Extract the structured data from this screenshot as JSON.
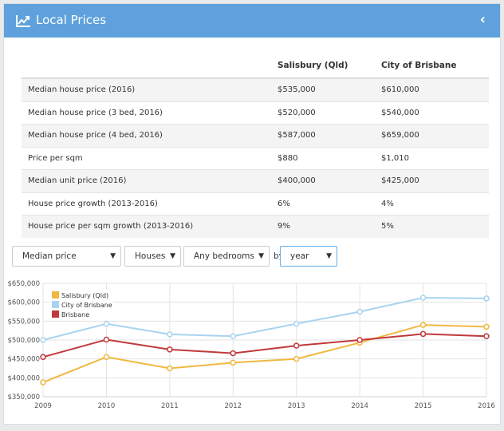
{
  "header": {
    "title": "Local Prices",
    "icon": "trend-chart-icon",
    "collapse_glyph": "‹"
  },
  "table": {
    "columns": [
      "",
      "Salisbury (Qld)",
      "City of Brisbane"
    ],
    "rows": [
      [
        "Median house price (2016)",
        "$535,000",
        "$610,000"
      ],
      [
        "Median house price (3 bed, 2016)",
        "$520,000",
        "$540,000"
      ],
      [
        "Median house price (4 bed, 2016)",
        "$587,000",
        "$659,000"
      ],
      [
        "Price per sqm",
        "$880",
        "$1,010"
      ],
      [
        "Median unit price (2016)",
        "$400,000",
        "$425,000"
      ],
      [
        "House price growth (2013-2016)",
        "6%",
        "4%"
      ],
      [
        "House price per sqm growth (2013-2016)",
        "9%",
        "5%"
      ]
    ]
  },
  "controls": {
    "metric": "Median price",
    "property_type": "Houses",
    "bedrooms": "Any bedrooms",
    "by_label": "by",
    "period": "year"
  },
  "chart_data": {
    "type": "line",
    "x": [
      "2009",
      "2010",
      "2011",
      "2012",
      "2013",
      "2014",
      "2015",
      "2016"
    ],
    "ylim": [
      350000,
      650000
    ],
    "yticks": [
      "$350,000",
      "$400,000",
      "$450,000",
      "$500,000",
      "$550,000",
      "$600,000",
      "$650,000"
    ],
    "ytick_values": [
      350000,
      400000,
      450000,
      500000,
      550000,
      600000,
      650000
    ],
    "grid": true,
    "legend_position": "top-left",
    "series": [
      {
        "name": "Salisbury (Qld)",
        "color": "#f0b840",
        "values": [
          388000,
          455000,
          425000,
          440000,
          450000,
          493000,
          540000,
          535000
        ]
      },
      {
        "name": "City of Brisbane",
        "color": "#a8d4ef",
        "values": [
          500000,
          543000,
          515000,
          510000,
          543000,
          575000,
          612000,
          610000
        ]
      },
      {
        "name": "Brisbane",
        "color": "#c1393b",
        "values": [
          455000,
          501000,
          475000,
          465000,
          485000,
          500000,
          516000,
          510000
        ]
      }
    ]
  }
}
